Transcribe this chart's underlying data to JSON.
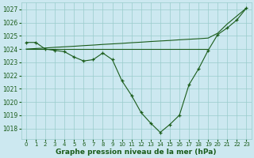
{
  "title": "Graphe pression niveau de la mer (hPa)",
  "bg_color": "#cce8f0",
  "grid_color": "#99cccc",
  "line_color": "#1a5c1a",
  "hours": [
    0,
    1,
    2,
    3,
    4,
    5,
    6,
    7,
    8,
    9,
    10,
    11,
    12,
    13,
    14,
    15,
    16,
    17,
    18,
    19,
    20,
    21,
    22,
    23
  ],
  "series_main": [
    1024.5,
    1024.5,
    1024.0,
    1023.9,
    1023.8,
    1023.4,
    1023.1,
    1023.2,
    1023.7,
    1023.2,
    1021.6,
    1020.5,
    1019.2,
    1018.4,
    1017.7,
    1018.3,
    1019.0,
    1021.3,
    1022.5,
    1023.9,
    1025.1,
    1025.6,
    1026.2,
    1027.1
  ],
  "series_diag": [
    1024.0,
    1024.04,
    1024.08,
    1024.13,
    1024.17,
    1024.21,
    1024.26,
    1024.3,
    1024.35,
    1024.39,
    1024.43,
    1024.48,
    1024.52,
    1024.57,
    1024.61,
    1024.65,
    1024.7,
    1024.74,
    1024.78,
    1024.83,
    1025.2,
    1025.9,
    1026.5,
    1027.1
  ],
  "series_flat": [
    1024.0,
    1024.0,
    1024.0,
    1024.0,
    1024.0,
    1024.0,
    1024.0,
    1024.0,
    1024.0,
    1024.0,
    1024.0,
    1024.0,
    1024.0,
    1024.0,
    1024.0,
    1024.0,
    1024.0,
    1024.0,
    1024.0,
    1024.0,
    null,
    null,
    null,
    null
  ],
  "ylim": [
    1017.2,
    1027.5
  ],
  "yticks": [
    1018,
    1019,
    1020,
    1021,
    1022,
    1023,
    1024,
    1025,
    1026,
    1027
  ],
  "xticks": [
    0,
    1,
    2,
    3,
    4,
    5,
    6,
    7,
    8,
    9,
    10,
    11,
    12,
    13,
    14,
    15,
    16,
    17,
    18,
    19,
    20,
    21,
    22,
    23
  ],
  "title_fontsize": 6.5,
  "tick_fontsize": 5.5
}
